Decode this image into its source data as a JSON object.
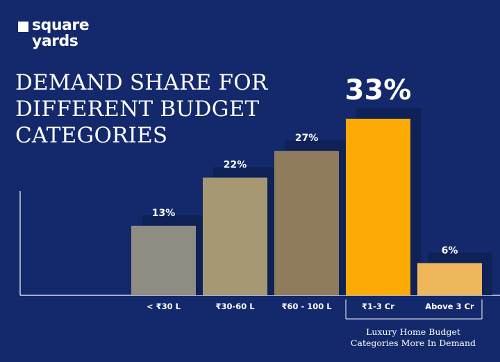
{
  "logo": {
    "line1": "square",
    "line2": "yards"
  },
  "title_lines": [
    "DEMAND SHARE FOR",
    "DIFFERENT BUDGET",
    "CATEGORIES"
  ],
  "colors": {
    "background": "#13296b",
    "shadow": "#0f2257",
    "axis": "#ffffff",
    "text": "#ffffff"
  },
  "chart_data": {
    "type": "bar",
    "title": "DEMAND SHARE FOR DIFFERENT BUDGET CATEGORIES",
    "categories": [
      "< ₹30 L",
      "₹30-60 L",
      "₹60 - 100 L",
      "₹1-3 Cr",
      "Above 3 Cr"
    ],
    "values": [
      13,
      22,
      27,
      33,
      6
    ],
    "value_labels": [
      "13%",
      "22%",
      "27%",
      "33%",
      "6%"
    ],
    "bar_colors": [
      "#8f8c84",
      "#a59872",
      "#8e7c5c",
      "#fcaa03",
      "#eeb75b"
    ],
    "highlight_index": 3,
    "ylim": [
      0,
      35
    ],
    "grid": false,
    "bracket_categories": [
      3,
      4
    ],
    "annotation": "Luxury Home Budget Categories More In Demand"
  },
  "annotation_lines": [
    "Luxury Home Budget",
    "Categories More In Demand"
  ]
}
